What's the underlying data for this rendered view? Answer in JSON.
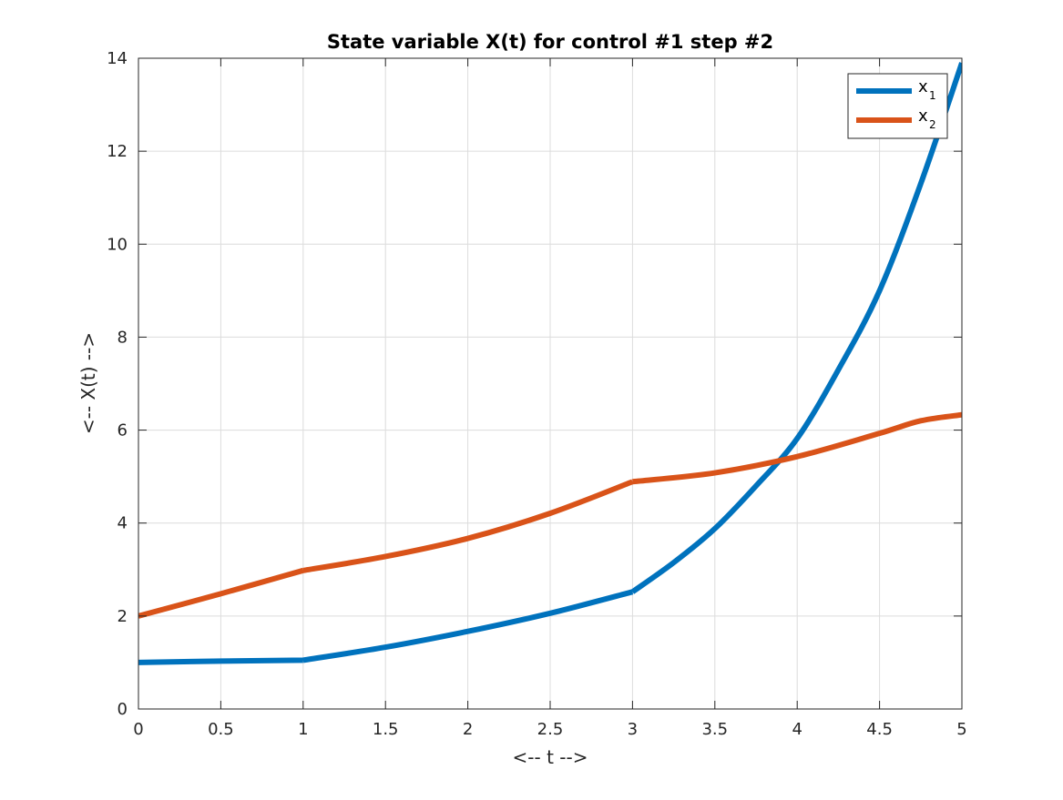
{
  "chart_data": {
    "type": "line",
    "title": "State variable X(t) for control #1 step #2",
    "xlabel": "<-- t -->",
    "ylabel": "<-- X(t) -->",
    "xlim": [
      0,
      5
    ],
    "ylim": [
      0,
      14
    ],
    "xticks": [
      0,
      0.5,
      1,
      1.5,
      2,
      2.5,
      3,
      3.5,
      4,
      4.5,
      5
    ],
    "xtick_labels": [
      "0",
      "0.5",
      "1",
      "1.5",
      "2",
      "2.5",
      "3",
      "3.5",
      "4",
      "4.5",
      "5"
    ],
    "yticks": [
      0,
      2,
      4,
      6,
      8,
      10,
      12,
      14
    ],
    "ytick_labels": [
      "0",
      "2",
      "4",
      "6",
      "8",
      "10",
      "12",
      "14"
    ],
    "grid": true,
    "legend_position": "top-right",
    "series": [
      {
        "name": "x",
        "subscript": "1",
        "color": "#0072BD",
        "x": [
          0,
          0.5,
          1,
          1.5,
          2,
          2.5,
          3,
          3.25,
          3.5,
          3.75,
          4,
          4.25,
          4.5,
          4.75,
          5
        ],
        "y": [
          1.0,
          1.03,
          1.05,
          1.33,
          1.67,
          2.06,
          2.52,
          3.15,
          3.88,
          4.8,
          5.82,
          7.3,
          9.0,
          11.3,
          13.9
        ]
      },
      {
        "name": "x",
        "subscript": "2",
        "color": "#D95319",
        "x": [
          0,
          0.5,
          1,
          1.5,
          2,
          2.5,
          3,
          3.5,
          4,
          4.5,
          4.75,
          5
        ],
        "y": [
          2.0,
          2.48,
          2.98,
          3.28,
          3.67,
          4.21,
          4.89,
          5.08,
          5.43,
          5.93,
          6.2,
          6.33
        ]
      }
    ]
  }
}
